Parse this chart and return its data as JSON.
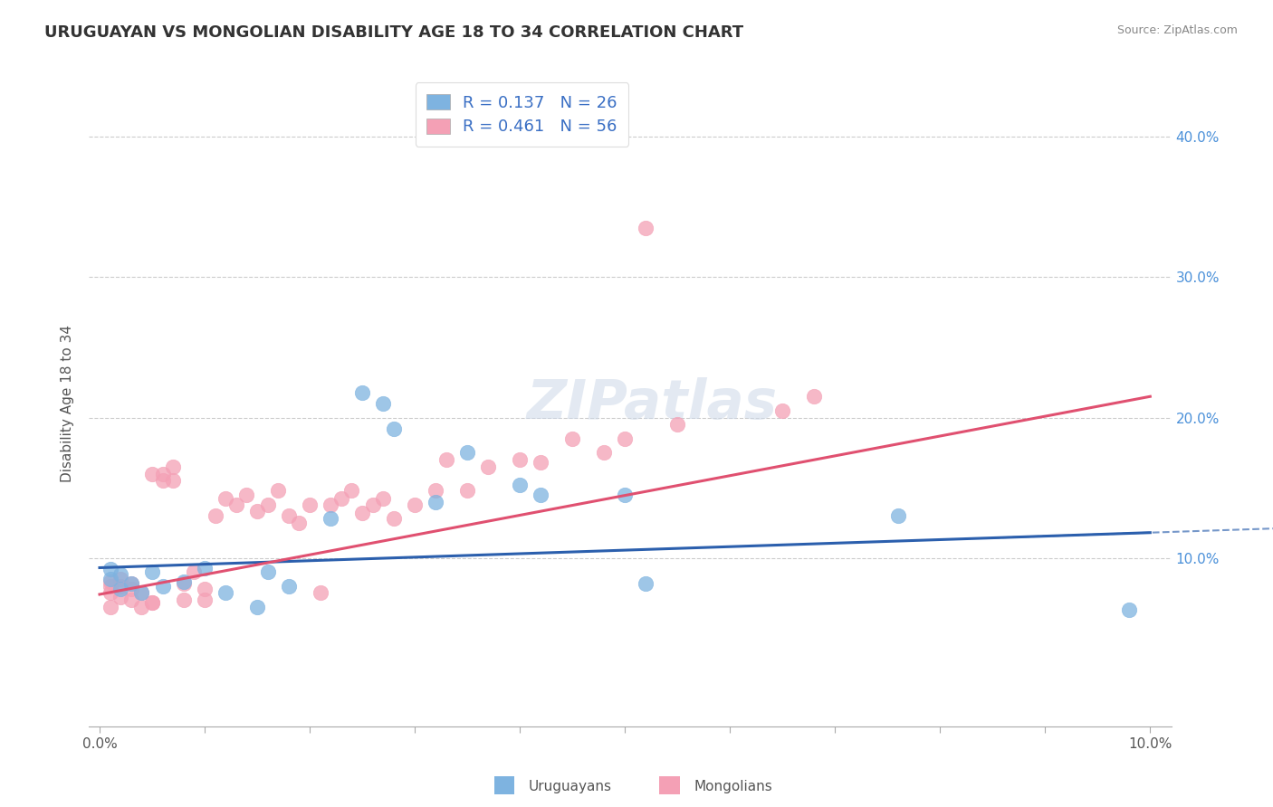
{
  "title": "URUGUAYAN VS MONGOLIAN DISABILITY AGE 18 TO 34 CORRELATION CHART",
  "source": "Source: ZipAtlas.com",
  "ylabel": "Disability Age 18 to 34",
  "xlim": [
    -0.001,
    0.102
  ],
  "ylim": [
    -0.02,
    0.44
  ],
  "color_uruguayan": "#7eb3e0",
  "color_mongolian": "#f4a0b5",
  "color_line_uruguayan": "#2b5fad",
  "color_line_mongolian": "#e05070",
  "color_rn": "#3a6fc4",
  "watermark": "ZIPatlas",
  "legend_line1": "R = 0.137   N = 26",
  "legend_line2": "R = 0.461   N = 56",
  "xtick_vals": [
    0.0,
    0.01,
    0.02,
    0.03,
    0.04,
    0.05,
    0.06,
    0.07,
    0.08,
    0.09,
    0.1
  ],
  "xtick_labels": [
    "0.0%",
    "",
    "",
    "",
    "",
    "",
    "",
    "",
    "",
    "",
    "10.0%"
  ],
  "ytick_vals": [
    0.1,
    0.2,
    0.3,
    0.4
  ],
  "ytick_labels": [
    "10.0%",
    "20.0%",
    "30.0%",
    "40.0%"
  ],
  "grid_yticks": [
    0.1,
    0.2,
    0.3,
    0.4
  ],
  "uruguayan_x": [
    0.001,
    0.001,
    0.002,
    0.002,
    0.003,
    0.004,
    0.005,
    0.006,
    0.008,
    0.01,
    0.012,
    0.015,
    0.016,
    0.018,
    0.022,
    0.025,
    0.027,
    0.028,
    0.032,
    0.035,
    0.04,
    0.042,
    0.05,
    0.052,
    0.076,
    0.098
  ],
  "uruguayan_y": [
    0.085,
    0.092,
    0.088,
    0.078,
    0.082,
    0.075,
    0.09,
    0.08,
    0.083,
    0.093,
    0.075,
    0.065,
    0.09,
    0.08,
    0.128,
    0.218,
    0.21,
    0.192,
    0.14,
    0.175,
    0.152,
    0.145,
    0.145,
    0.082,
    0.13,
    0.063
  ],
  "mongolian_x": [
    0.001,
    0.001,
    0.001,
    0.001,
    0.002,
    0.002,
    0.002,
    0.003,
    0.003,
    0.003,
    0.004,
    0.004,
    0.005,
    0.005,
    0.005,
    0.006,
    0.006,
    0.007,
    0.007,
    0.008,
    0.008,
    0.009,
    0.01,
    0.01,
    0.011,
    0.012,
    0.013,
    0.014,
    0.015,
    0.016,
    0.017,
    0.018,
    0.019,
    0.02,
    0.021,
    0.022,
    0.023,
    0.024,
    0.025,
    0.026,
    0.027,
    0.028,
    0.03,
    0.032,
    0.033,
    0.035,
    0.037,
    0.04,
    0.042,
    0.045,
    0.048,
    0.05,
    0.052,
    0.055,
    0.065,
    0.068
  ],
  "mongolian_y": [
    0.075,
    0.08,
    0.083,
    0.065,
    0.072,
    0.08,
    0.085,
    0.078,
    0.082,
    0.07,
    0.065,
    0.075,
    0.068,
    0.16,
    0.068,
    0.155,
    0.16,
    0.155,
    0.165,
    0.07,
    0.082,
    0.09,
    0.078,
    0.07,
    0.13,
    0.142,
    0.138,
    0.145,
    0.133,
    0.138,
    0.148,
    0.13,
    0.125,
    0.138,
    0.075,
    0.138,
    0.142,
    0.148,
    0.132,
    0.138,
    0.142,
    0.128,
    0.138,
    0.148,
    0.17,
    0.148,
    0.165,
    0.17,
    0.168,
    0.185,
    0.175,
    0.185,
    0.335,
    0.195,
    0.205,
    0.215
  ],
  "uru_line_x0": 0.0,
  "uru_line_y0": 0.093,
  "uru_line_x1": 0.1,
  "uru_line_y1": 0.118,
  "mon_line_x0": 0.0,
  "mon_line_y0": 0.074,
  "mon_line_x1": 0.1,
  "mon_line_y1": 0.215
}
